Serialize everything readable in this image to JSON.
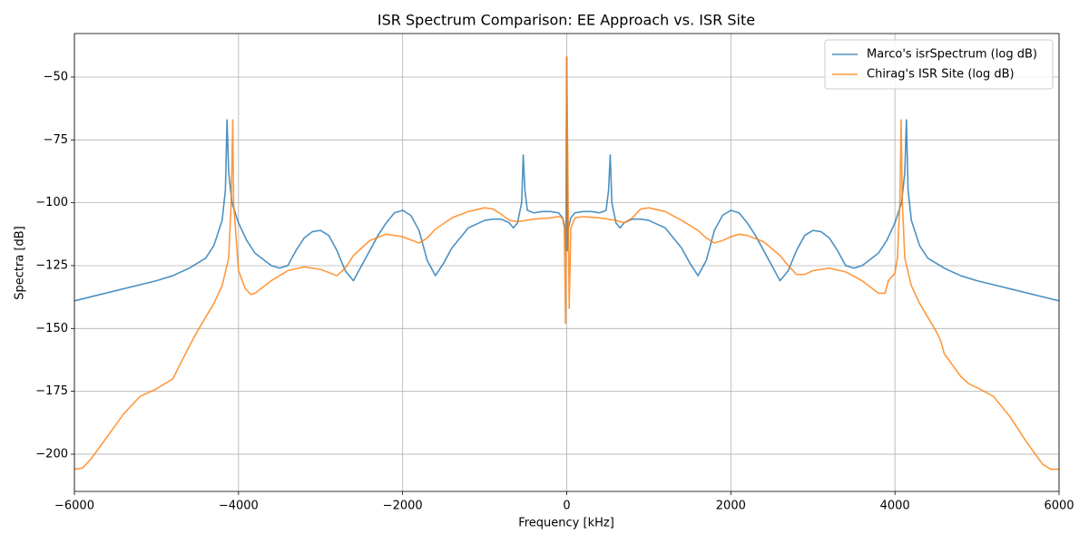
{
  "chart_data": {
    "type": "line",
    "title": "ISR Spectrum Comparison: EE Approach vs. ISR Site",
    "x_label": "Frequency [kHz]",
    "y_label": "Spectra [dB]",
    "xlim": [
      -6000,
      6000
    ],
    "ylim": [
      -214.8,
      -32.7
    ],
    "xticks": [
      {
        "value": -6000,
        "label": "−6000"
      },
      {
        "value": -4000,
        "label": "−4000"
      },
      {
        "value": -2000,
        "label": "−2000"
      },
      0,
      2000,
      4000,
      6000
    ],
    "yticks": [
      {
        "value": -200,
        "label": "−200"
      },
      {
        "value": -175,
        "label": "−175"
      },
      {
        "value": -150,
        "label": "−150"
      },
      {
        "value": -125,
        "label": "−125"
      },
      {
        "value": -100,
        "label": "−100"
      },
      {
        "value": -75,
        "label": "−75"
      },
      {
        "value": -50,
        "label": "−50"
      }
    ],
    "grid": true,
    "legend": "upper right",
    "series": [
      {
        "name": "Marco's isrSpectrum (log dB)",
        "color": "#1f77b4",
        "x": [
          -6000,
          -5500,
          -5000,
          -4800,
          -4600,
          -4400,
          -4300,
          -4200,
          -4160,
          -4140,
          -4120,
          -4080,
          -4000,
          -3900,
          -3800,
          -3600,
          -3500,
          -3400,
          -3300,
          -3200,
          -3100,
          -3000,
          -2900,
          -2800,
          -2700,
          -2600,
          -2500,
          -2300,
          -2200,
          -2100,
          -2000,
          -1900,
          -1800,
          -1700,
          -1600,
          -1500,
          -1400,
          -1200,
          -1000,
          -900,
          -800,
          -700,
          -650,
          -600,
          -550,
          -530,
          -510,
          -480,
          -400,
          -300,
          -200,
          -100,
          -50,
          -20,
          -10,
          0,
          10,
          20,
          50,
          100,
          200,
          300,
          400,
          480,
          510,
          530,
          550,
          600,
          650,
          700,
          800,
          900,
          1000,
          1200,
          1400,
          1500,
          1600,
          1700,
          1800,
          1900,
          2000,
          2100,
          2200,
          2300,
          2500,
          2600,
          2700,
          2800,
          2900,
          3000,
          3100,
          3200,
          3300,
          3400,
          3500,
          3600,
          3800,
          3900,
          4000,
          4080,
          4120,
          4140,
          4160,
          4200,
          4300,
          4400,
          4600,
          4800,
          5000,
          5500,
          6000
        ],
        "values": [
          -139,
          -135,
          -131,
          -129,
          -126,
          -122,
          -117,
          -107,
          -95,
          -67,
          -88,
          -100,
          -108,
          -115,
          -120,
          -125,
          -126,
          -125,
          -119,
          -114,
          -111.5,
          -111,
          -113,
          -119,
          -127,
          -131,
          -125,
          -113,
          -108,
          -104,
          -103,
          -105,
          -111,
          -123,
          -129,
          -124,
          -118,
          -110,
          -107,
          -106.5,
          -106.5,
          -108,
          -110,
          -108,
          -100,
          -81,
          -95,
          -103,
          -104,
          -103.5,
          -103.5,
          -104,
          -106,
          -110,
          -119,
          -42,
          -119,
          -110,
          -106,
          -104,
          -103.5,
          -103.5,
          -104,
          -103,
          -95,
          -81,
          -100,
          -108,
          -110,
          -108,
          -106.5,
          -106.5,
          -107,
          -110,
          -118,
          -124,
          -129,
          -123,
          -111,
          -105,
          -103,
          -104,
          -108,
          -113,
          -125,
          -131,
          -127,
          -119,
          -113,
          -111,
          -111.5,
          -114,
          -119,
          -125,
          -126,
          -125,
          -120,
          -115,
          -108,
          -100,
          -88,
          -67,
          -95,
          -107,
          -117,
          -122,
          -126,
          -129,
          -131,
          -135,
          -139
        ]
      },
      {
        "name": "Chirag's ISR Site (log dB)",
        "color": "#ff7f0e",
        "x": [
          -6000,
          -5900,
          -5800,
          -5600,
          -5400,
          -5200,
          -5000,
          -4800,
          -4600,
          -4500,
          -4300,
          -4200,
          -4120,
          -4090,
          -4070,
          -4060,
          -4000,
          -3920,
          -3850,
          -3800,
          -3600,
          -3400,
          -3200,
          -3000,
          -2800,
          -2700,
          -2600,
          -2400,
          -2200,
          -2000,
          -1800,
          -1700,
          -1600,
          -1400,
          -1200,
          -1000,
          -900,
          -800,
          -700,
          -600,
          -400,
          -200,
          -100,
          -50,
          -30,
          -15,
          0,
          30,
          50,
          100,
          200,
          400,
          600,
          700,
          800,
          900,
          1000,
          1200,
          1400,
          1600,
          1700,
          1800,
          1900,
          2000,
          2100,
          2200,
          2400,
          2600,
          2700,
          2800,
          2900,
          3000,
          3200,
          3400,
          3600,
          3800,
          3880,
          3920,
          4000,
          4030,
          4060,
          4075,
          4090,
          4120,
          4200,
          4300,
          4500,
          4560,
          4600,
          4800,
          4900,
          5000,
          5200,
          5400,
          5600,
          5800,
          5900,
          6000
        ],
        "values": [
          -206,
          -205.5,
          -202,
          -193,
          -184,
          -177,
          -174,
          -170,
          -157,
          -151,
          -140,
          -133,
          -122,
          -100,
          -67,
          -100,
          -127,
          -134,
          -136.5,
          -136,
          -131,
          -127,
          -125.5,
          -126.5,
          -129,
          -126,
          -121,
          -115,
          -112.5,
          -113.5,
          -116,
          -114,
          -110.5,
          -106,
          -103.5,
          -102,
          -102.5,
          -104.5,
          -107,
          -107.5,
          -106.5,
          -106,
          -105.5,
          -106,
          -110,
          -148,
          -42,
          -142,
          -110,
          -106,
          -105.5,
          -106,
          -107,
          -108,
          -106,
          -102.5,
          -102,
          -103.5,
          -107,
          -111,
          -114,
          -116,
          -115,
          -113.5,
          -112.5,
          -113,
          -115.5,
          -121,
          -125,
          -128.5,
          -128.5,
          -127,
          -126,
          -127.5,
          -131,
          -136,
          -136,
          -131,
          -128,
          -122,
          -100,
          -67,
          -100,
          -122,
          -133,
          -140,
          -151,
          -155,
          -160,
          -169,
          -172,
          -173.5,
          -177,
          -185,
          -195,
          -204,
          -206,
          -206
        ]
      }
    ]
  }
}
